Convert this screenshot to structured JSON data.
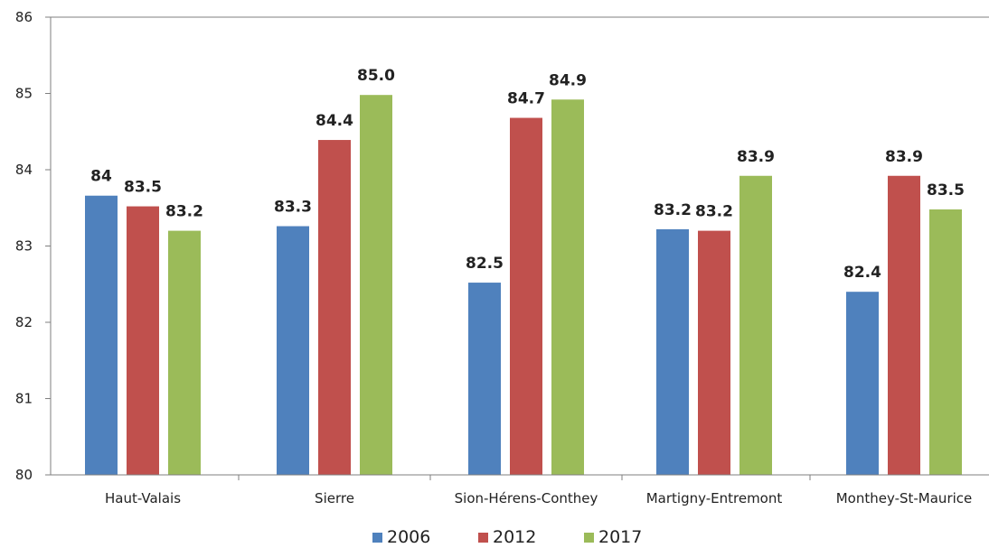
{
  "chart_data": {
    "type": "bar",
    "categories": [
      "Haut-Valais",
      "Sierre",
      "Sion-Hérens-Conthey",
      "Martigny-Entremont",
      "Monthey-St-Maurice"
    ],
    "series": [
      {
        "name": "2006",
        "color": "#4f81bd",
        "values": [
          83.66,
          83.26,
          82.52,
          83.22,
          82.4
        ],
        "labels": [
          "84",
          "83.3",
          "82.5",
          "83.2",
          "82.4"
        ]
      },
      {
        "name": "2012",
        "color": "#c0504d",
        "values": [
          83.52,
          84.39,
          84.68,
          83.2,
          83.92
        ],
        "labels": [
          "83.5",
          "84.4",
          "84.7",
          "83.2",
          "83.9"
        ]
      },
      {
        "name": "2017",
        "color": "#9bbb59",
        "values": [
          83.2,
          84.98,
          84.92,
          83.92,
          83.48
        ],
        "labels": [
          "83.2",
          "85.0",
          "84.9",
          "83.9",
          "83.5"
        ]
      }
    ],
    "title": "",
    "xlabel": "",
    "ylabel": "",
    "ylim": [
      80,
      86
    ],
    "yticks": [
      "80",
      "81",
      "82",
      "83",
      "84",
      "85",
      "86"
    ],
    "grid": false,
    "legend": "bottom"
  }
}
